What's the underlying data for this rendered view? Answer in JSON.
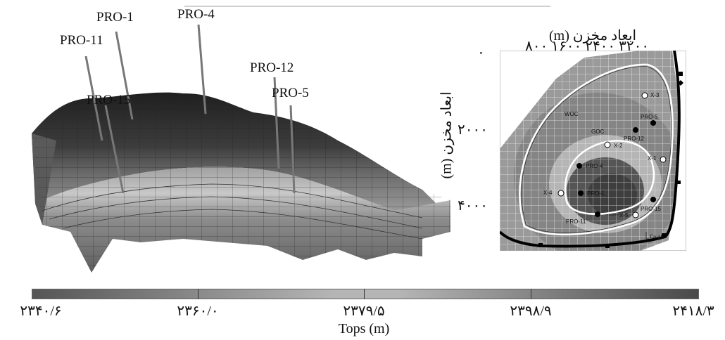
{
  "model3d": {
    "wells": [
      {
        "name": "PRO-1"
      },
      {
        "name": "PRO-4"
      },
      {
        "name": "PRO-11"
      },
      {
        "name": "PRO-15"
      },
      {
        "name": "PRO-12"
      },
      {
        "name": "PRO-5"
      }
    ]
  },
  "map": {
    "top_axis_title": "ابعاد مخزن (m)",
    "top_ticks": "۸۰۰ ۱۶۰۰ ۲۴۰۰ ۳۲۰۰",
    "left_axis_title": "ابعاد مخزن (m)",
    "left_ticks": [
      "۰",
      "۲۰۰۰",
      "۴۰۰۰"
    ],
    "contact_labels": {
      "woc": "WOC",
      "goc": "GOC"
    },
    "fault_label": "Fault",
    "producer_wells": [
      "PRO-5",
      "PRO-12",
      "PRO-4",
      "PRO-1",
      "PRO-15",
      "PRO-11"
    ],
    "exploration_wells": [
      "X-3",
      "X-2",
      "X-1",
      "X-4",
      "X-5"
    ]
  },
  "colorbar": {
    "title": "Tops (m)",
    "ticks": [
      "۲۳۴۰/۶",
      "۲۳۶۰/۰",
      "۲۳۷۹/۵",
      "۲۳۹۸/۹",
      "۲۴۱۸/۳"
    ],
    "colors": {
      "low": "#555555",
      "mid": "#b5b5b5",
      "high": "#4a4a4a"
    }
  }
}
